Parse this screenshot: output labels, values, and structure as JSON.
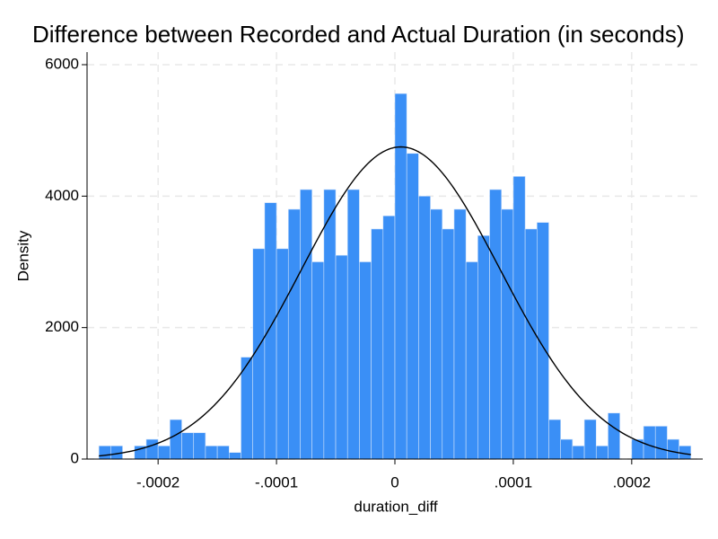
{
  "chart_data": {
    "type": "histogram",
    "title": "Difference between Recorded and Actual Duration (in seconds)",
    "x_label": "duration_diff",
    "y_label": "Density",
    "bins": [
      -0.00025,
      -0.00024,
      -0.00023,
      -0.00022,
      -0.00021,
      -0.0002,
      -0.00019,
      -0.00018,
      -0.00017,
      -0.00016,
      -0.00015,
      -0.00014,
      -0.00013,
      -0.00012,
      -0.00011,
      -0.0001,
      -9e-05,
      -8e-05,
      -7e-05,
      -6e-05,
      -5e-05,
      -4e-05,
      -3e-05,
      -2e-05,
      -1e-05,
      0,
      1e-05,
      2e-05,
      3e-05,
      4e-05,
      5e-05,
      6e-05,
      7e-05,
      8e-05,
      9e-05,
      0.0001,
      0.00011,
      0.00012,
      0.00013,
      0.00014,
      0.00015,
      0.00016,
      0.00017,
      0.00018,
      0.00019,
      0.0002,
      0.00021,
      0.00022,
      0.00023,
      0.00024,
      0.00025
    ],
    "values": [
      200,
      200,
      0,
      200,
      300,
      200,
      600,
      400,
      400,
      200,
      200,
      100,
      1550,
      3200,
      3900,
      3200,
      3800,
      4100,
      3000,
      4100,
      3100,
      4100,
      3000,
      3500,
      3700,
      5560,
      4650,
      4000,
      3800,
      3500,
      3800,
      3000,
      3400,
      4100,
      3800,
      4300,
      3500,
      3600,
      600,
      300,
      200,
      600,
      200,
      700,
      0,
      300,
      500,
      500,
      300,
      200
    ],
    "color": "#3a8ff6",
    "normal_curve": {
      "mean": 5e-06,
      "sd": 8.4e-05,
      "color": "#000000"
    },
    "xlim": [
      -0.00026,
      0.00026
    ],
    "ylim": [
      0,
      6000
    ],
    "xticks": [
      {
        "value": -0.0002,
        "label": "-.0002"
      },
      {
        "value": -0.0001,
        "label": "-.0001"
      },
      0,
      {
        "value": 0.0001,
        "label": ".0001"
      },
      {
        "value": 0.0002,
        "label": ".0002"
      }
    ],
    "yticks": [
      0,
      2000,
      4000,
      6000
    ],
    "grid": true
  }
}
